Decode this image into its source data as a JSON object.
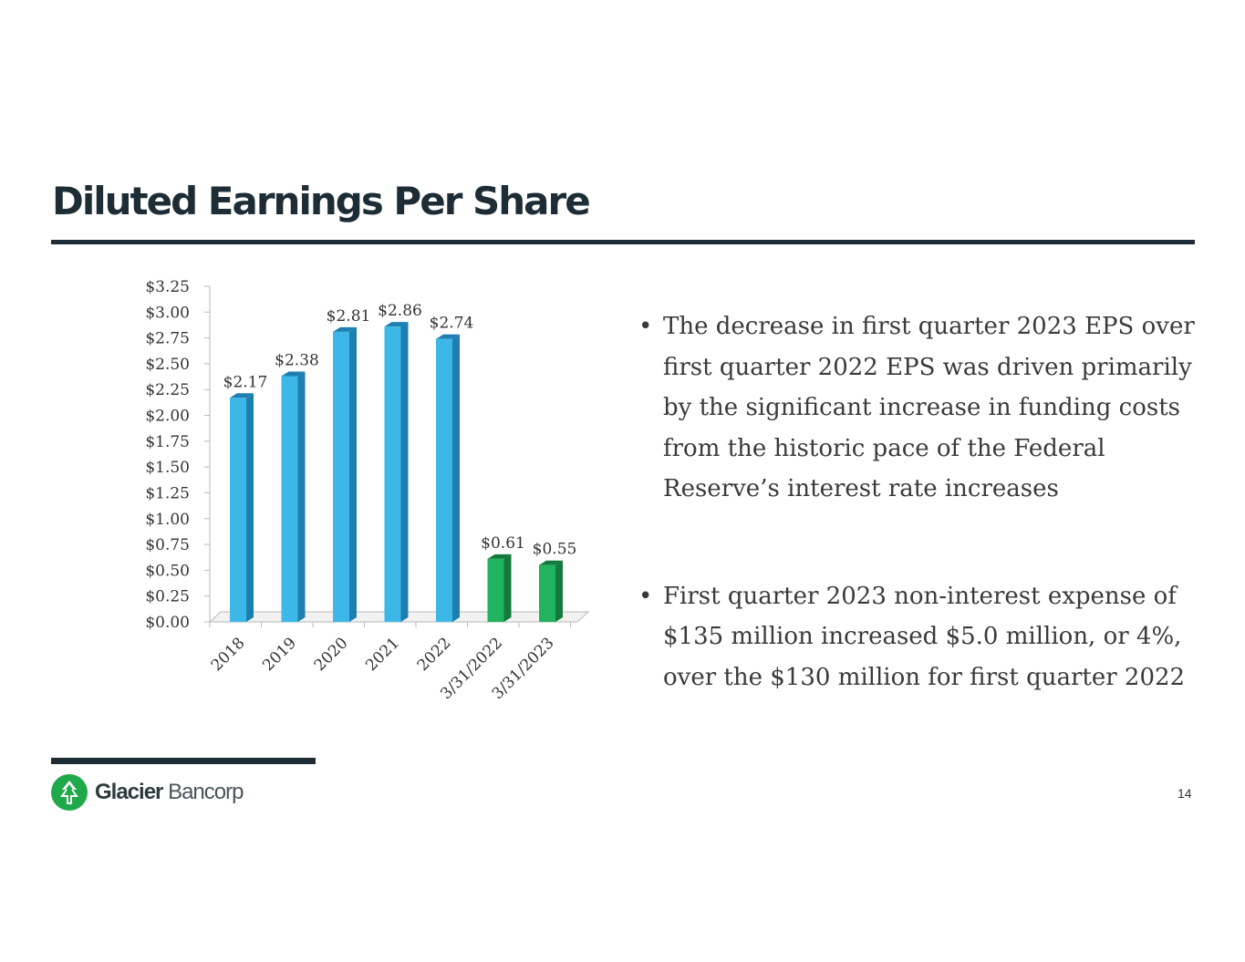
{
  "slide": {
    "title": "Diluted Earnings Per Share",
    "page_number": "14"
  },
  "bullets": [
    "The decrease in first quarter 2023 EPS over first quarter 2022 EPS was driven primarily by the significant increase in funding costs from the historic pace of the Federal Reserve’s interest rate increases",
    "First quarter 2023 non-interest expense of $135 million increased $5.0 million, or 4%, over the $130 million for first quarter 2022"
  ],
  "logo": {
    "name_bold": "Glacier",
    "name_light": "Bancorp",
    "icon": "tree-icon"
  },
  "colors": {
    "annual": "#3db7e8",
    "annual_side": "#1c7fb0",
    "quarter": "#22b35e",
    "quarter_side": "#137a3c",
    "text": "#1e2d35"
  },
  "chart_data": {
    "type": "bar",
    "title": "",
    "categories": [
      "2018",
      "2019",
      "2020",
      "2021",
      "2022",
      "3/31/2022",
      "3/31/2023"
    ],
    "values": [
      2.17,
      2.38,
      2.81,
      2.86,
      2.74,
      0.61,
      0.55
    ],
    "value_labels": [
      "$2.17",
      "$2.38",
      "$2.81",
      "$2.86",
      "$2.74",
      "$0.61",
      "$0.55"
    ],
    "bar_groups": [
      "annual",
      "annual",
      "annual",
      "annual",
      "annual",
      "quarter",
      "quarter"
    ],
    "yticks": [
      0,
      0.25,
      0.5,
      0.75,
      1.0,
      1.25,
      1.5,
      1.75,
      2.0,
      2.25,
      2.5,
      2.75,
      3.0,
      3.25
    ],
    "ytick_labels": [
      "$0.00",
      "$0.25",
      "$0.50",
      "$0.75",
      "$1.00",
      "$1.25",
      "$1.50",
      "$1.75",
      "$2.00",
      "$2.25",
      "$2.50",
      "$2.75",
      "$3.00",
      "$3.25"
    ],
    "ylim": [
      0,
      3.25
    ],
    "xlabel": "",
    "ylabel": "",
    "grid": false
  }
}
